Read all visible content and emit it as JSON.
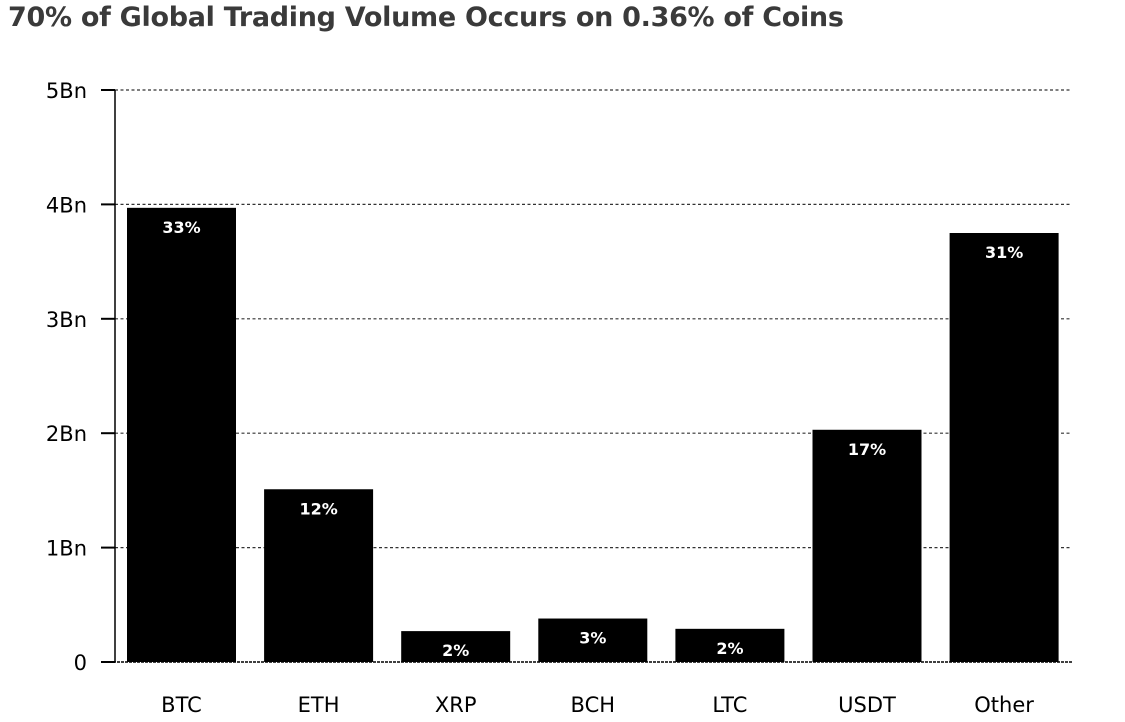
{
  "chart_data": {
    "type": "bar",
    "title": "70% of Global Trading Volume Occurs on 0.36% of Coins",
    "xlabel": "",
    "ylabel": "",
    "categories": [
      "BTC",
      "ETH",
      "XRP",
      "BCH",
      "LTC",
      "USDT",
      "Other"
    ],
    "values": [
      3.97,
      1.51,
      0.27,
      0.38,
      0.29,
      2.03,
      3.75
    ],
    "value_unit": "Bn",
    "data_labels": [
      "33%",
      "12%",
      "2%",
      "3%",
      "2%",
      "17%",
      "31%"
    ],
    "ylim": [
      0,
      5
    ],
    "y_ticks": [
      0,
      1,
      2,
      3,
      4,
      5
    ],
    "y_tick_labels": [
      "0",
      "1Bn",
      "2Bn",
      "3Bn",
      "4Bn",
      "5Bn"
    ],
    "grid": true,
    "bar_color": "#000000",
    "label_color": "#ffffff"
  }
}
